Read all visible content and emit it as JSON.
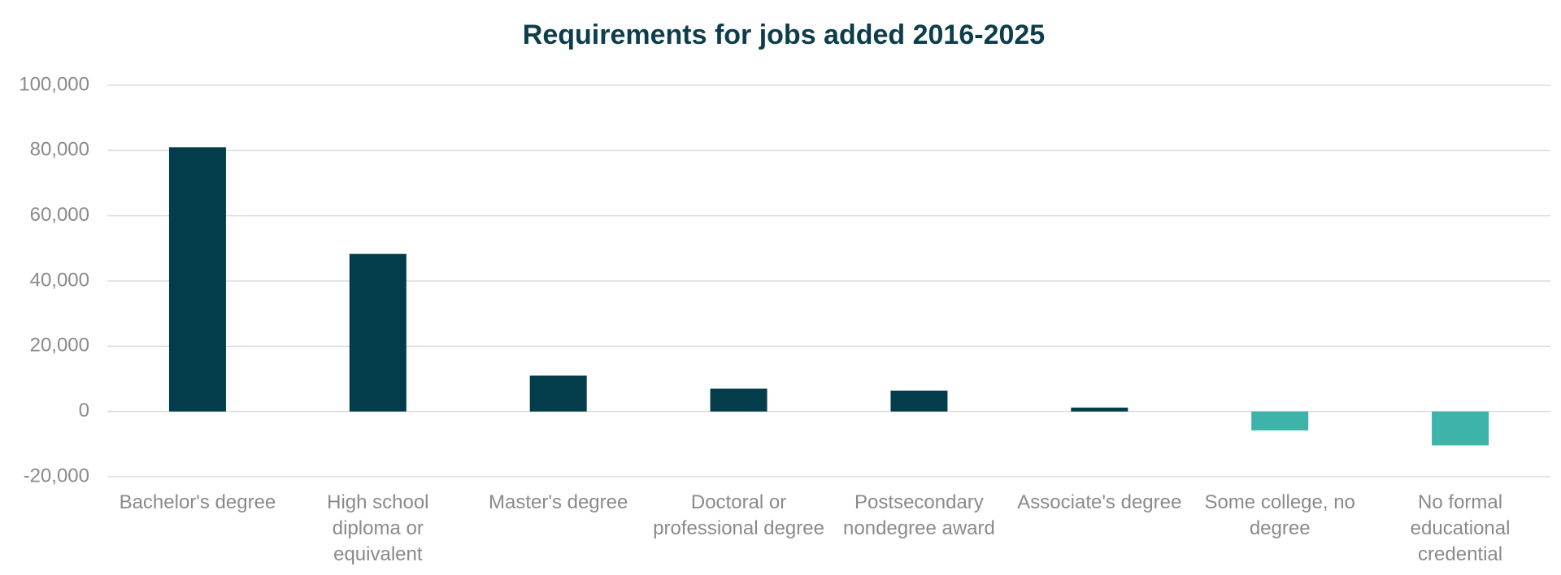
{
  "chart_data": {
    "type": "bar",
    "title": "Requirements for jobs added 2016-2025",
    "categories": [
      "Bachelor's degree",
      "High school diploma or equivalent",
      "Master's degree",
      "Doctoral or professional degree",
      "Postsecondary nondegree award",
      "Associate's degree",
      "Some college, no degree",
      "No formal educational credential"
    ],
    "values": [
      81000,
      48300,
      11000,
      7000,
      6400,
      1200,
      -5800,
      -10400
    ],
    "colors": [
      "#033d4b",
      "#033d4b",
      "#033d4b",
      "#033d4b",
      "#033d4b",
      "#033d4b",
      "#3db3aa",
      "#3db3aa"
    ],
    "ylim": [
      -20000,
      100000
    ],
    "yticks": [
      {
        "value": -20000,
        "label": "-20,000"
      },
      0,
      {
        "value": 20000,
        "label": "20,000"
      },
      {
        "value": 40000,
        "label": "40,000"
      },
      {
        "value": 60000,
        "label": "60,000"
      },
      {
        "value": 80000,
        "label": "80,000"
      },
      {
        "value": 100000,
        "label": "100,000"
      }
    ],
    "grid": true
  }
}
